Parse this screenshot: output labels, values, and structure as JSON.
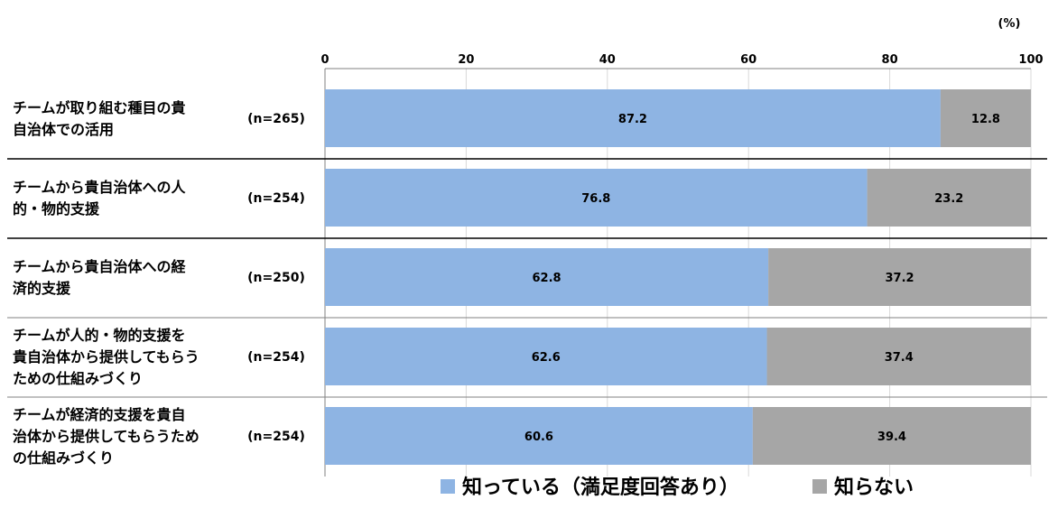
{
  "chart_data": {
    "type": "bar",
    "orientation": "horizontal",
    "stacked": true,
    "unit_label": "(%)",
    "xlim": [
      0,
      100
    ],
    "x_ticks": [
      0,
      20,
      40,
      60,
      80,
      100
    ],
    "categories": [
      [
        "チームが取り組む種目の貴",
        "自治体での活用"
      ],
      [
        "チームから貴自治体への人",
        "的・物的支援"
      ],
      [
        "チームから貴自治体への経",
        "済的支援"
      ],
      [
        "チームが人的・物的支援を",
        "貴自治体から提供してもらう",
        "ための仕組みづくり"
      ],
      [
        "チームが経済的支援を貴自",
        "治体から提供してもらうため",
        "の仕組みづくり"
      ]
    ],
    "n_labels": [
      "(n=265)",
      "(n=254)",
      "(n=250)",
      "(n=254)",
      "(n=254)"
    ],
    "series": [
      {
        "name": "知っている（満足度回答あり）",
        "color": "#8eb4e3",
        "values": [
          87.2,
          76.8,
          62.8,
          62.6,
          60.6
        ]
      },
      {
        "name": "知らない",
        "color": "#a6a6a6",
        "values": [
          12.8,
          23.2,
          37.2,
          37.4,
          39.4
        ]
      }
    ],
    "legend_position": "bottom"
  }
}
